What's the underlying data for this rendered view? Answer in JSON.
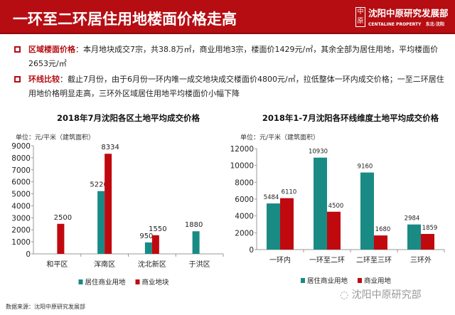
{
  "header": {
    "title": "一环至二环居住用地楼面价格走高",
    "logo_cn": "沈阳中原研究发展部",
    "logo_en": "CENTALINE PROPERTY",
    "logo_region": "东北·沈阳",
    "logo_mark": "中原"
  },
  "bullets": [
    {
      "key": "区域楼面价格",
      "text": "：本月地块成交7宗，共38.8万㎡，商业用地3宗，楼面价1429元/㎡，其余全部为居住用地，平均楼面价2653元/㎡"
    },
    {
      "key": "环线比较",
      "text": "：截止7月份，由于6月份一环内唯一成交地块成交楼面价4800元/㎡，拉低整体一环内成交价格；一至二环居住用地价格明显走高，三环外区域居住用地平均楼面价小幅下降"
    }
  ],
  "colors": {
    "teal": "#1a8a85",
    "red": "#c0090f",
    "brand": "#b50d12"
  },
  "chart_data": [
    {
      "type": "bar",
      "title": "2018年7月沈阳各区土地平均成交价格",
      "unit": "单位：元/平米（建筑面积）",
      "categories": [
        "和平区",
        "浑南区",
        "沈北新区",
        "于洪区"
      ],
      "ylim": [
        0,
        9000
      ],
      "yticks": [
        0,
        1000,
        2000,
        3000,
        4000,
        5000,
        6000,
        7000,
        8000,
        9000
      ],
      "legend": "bottom",
      "series": [
        {
          "name": "居住商业用地",
          "color": "#1a8a85",
          "values": [
            null,
            5226,
            950,
            1880
          ]
        },
        {
          "name": "商业地块",
          "color": "#c0090f",
          "values": [
            2500,
            8334,
            1550,
            null
          ]
        }
      ]
    },
    {
      "type": "bar",
      "title": "2018年1-7月沈阳各环线维度土地平均成交价格",
      "unit": "单位：元/平米（建筑面积）",
      "categories": [
        "一环内",
        "一环至二环",
        "二环至三环",
        "三环外"
      ],
      "ylim": [
        0,
        12000
      ],
      "yticks": [
        0,
        2000,
        4000,
        6000,
        8000,
        10000,
        12000
      ],
      "legend": "bottom",
      "series": [
        {
          "name": "居住商业用地",
          "color": "#1a8a85",
          "values": [
            5484,
            10930,
            9160,
            2984
          ]
        },
        {
          "name": "商业用地",
          "color": "#c0090f",
          "values": [
            6110,
            4500,
            1680,
            1859
          ]
        }
      ]
    }
  ],
  "source": "数据来源：沈阳中原研究发展部",
  "watermark": "沈阳中原研究部"
}
